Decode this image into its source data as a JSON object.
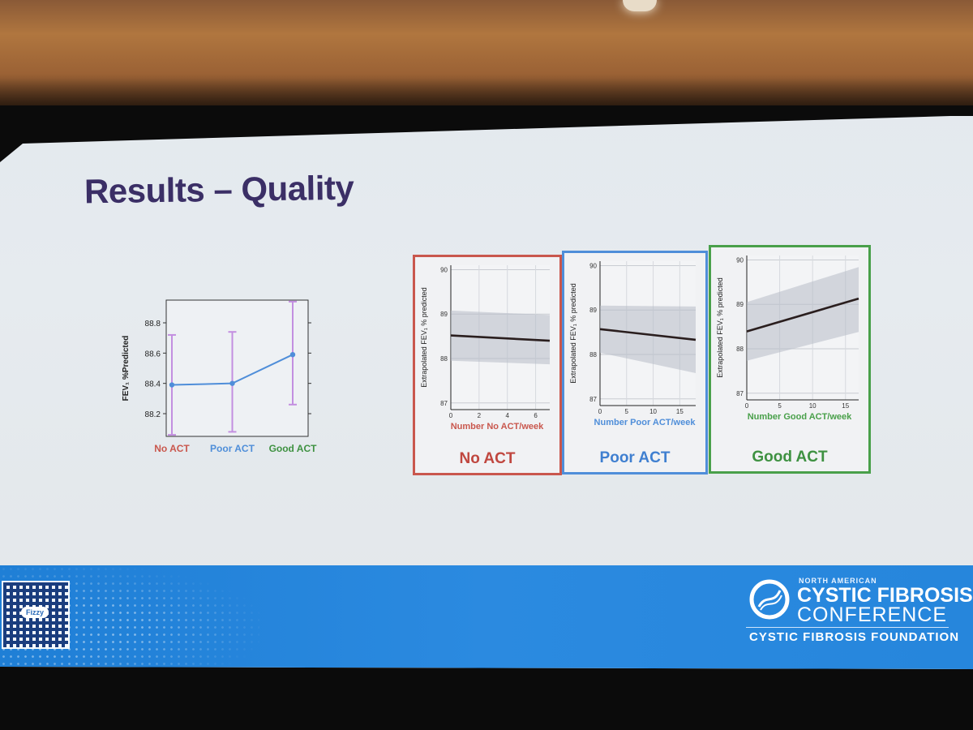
{
  "slide": {
    "title": "Results – Quality"
  },
  "left_chart": {
    "ylabel": "FEV₁ %Predicted",
    "y_ticks": [
      "88.8",
      "88.6",
      "88.4",
      "88.2"
    ],
    "categories": [
      "No ACT",
      "Poor ACT",
      "Good ACT"
    ],
    "category_colors": [
      "#c9574d",
      "#4f8ed9",
      "#3e9141"
    ],
    "line_color": "#4f8ed9",
    "errorbar_color": "#c38fe0"
  },
  "panels": [
    {
      "label": "No ACT",
      "xlabel": "Number No ACT/week",
      "ylabel": "Extrapolated FEV₁ % predicted",
      "x_ticks": [
        "0",
        "2",
        "4",
        "6"
      ],
      "y_ticks": [
        "90",
        "89",
        "88",
        "87"
      ],
      "color": "#c9574d"
    },
    {
      "label": "Poor ACT",
      "xlabel": "Number Poor ACT/week",
      "ylabel": "Extrapolated FEV₁ % predicted",
      "x_ticks": [
        "0",
        "5",
        "10",
        "15"
      ],
      "y_ticks": [
        "90",
        "89",
        "88",
        "87"
      ],
      "color": "#4f8ed9"
    },
    {
      "label": "Good ACT",
      "xlabel": "Number Good ACT/week",
      "ylabel": "Extrapolated FEV₁ % predicted",
      "x_ticks": [
        "0",
        "5",
        "10",
        "15"
      ],
      "y_ticks": [
        "90",
        "89",
        "88",
        "87"
      ],
      "color": "#49a04a"
    }
  ],
  "chart_data": [
    {
      "type": "line",
      "categories": [
        "No ACT",
        "Poor ACT",
        "Good ACT"
      ],
      "series": [
        {
          "values": [
            88.39,
            88.4,
            88.59
          ],
          "error_low": [
            88.06,
            88.08,
            88.26
          ],
          "error_high": [
            88.72,
            88.74,
            88.94
          ]
        }
      ],
      "ylabel": "FEV₁ %Predicted",
      "ylim": [
        88.05,
        88.95
      ]
    },
    {
      "type": "line",
      "x": [
        0,
        7
      ],
      "series": [
        {
          "values": [
            88.52,
            88.4
          ],
          "ci_low": [
            87.95,
            87.87
          ],
          "ci_high": [
            89.08,
            88.98
          ]
        }
      ],
      "xlabel": "Number No ACT/week",
      "ylabel": "Extrapolated FEV₁ % predicted",
      "xlim": [
        0,
        7
      ],
      "ylim": [
        86.85,
        90.1
      ]
    },
    {
      "type": "line",
      "x": [
        0,
        18
      ],
      "series": [
        {
          "values": [
            88.57,
            88.33
          ],
          "ci_low": [
            88.04,
            87.58
          ],
          "ci_high": [
            89.1,
            89.08
          ]
        }
      ],
      "xlabel": "Number Poor ACT/week",
      "ylabel": "Extrapolated FEV₁ % predicted",
      "xlim": [
        0,
        18
      ],
      "ylim": [
        86.85,
        90.1
      ]
    },
    {
      "type": "line",
      "x": [
        0,
        17
      ],
      "series": [
        {
          "values": [
            88.39,
            89.13
          ],
          "ci_low": [
            87.73,
            88.38
          ],
          "ci_high": [
            89.05,
            89.84
          ]
        }
      ],
      "xlabel": "Number Good ACT/week",
      "ylabel": "Extrapolated FEV₁ % predicted",
      "xlim": [
        0,
        17
      ],
      "ylim": [
        86.85,
        90.1
      ]
    }
  ],
  "footer": {
    "qr_caption": "Fizzy",
    "logo_small": "NORTH AMERICAN",
    "logo_main": "CYSTIC FIBROSIS",
    "logo_sub": "CONFERENCE",
    "logo_foundation": "CYSTIC FIBROSIS FOUNDATION",
    "band_color": "#2686dc"
  }
}
